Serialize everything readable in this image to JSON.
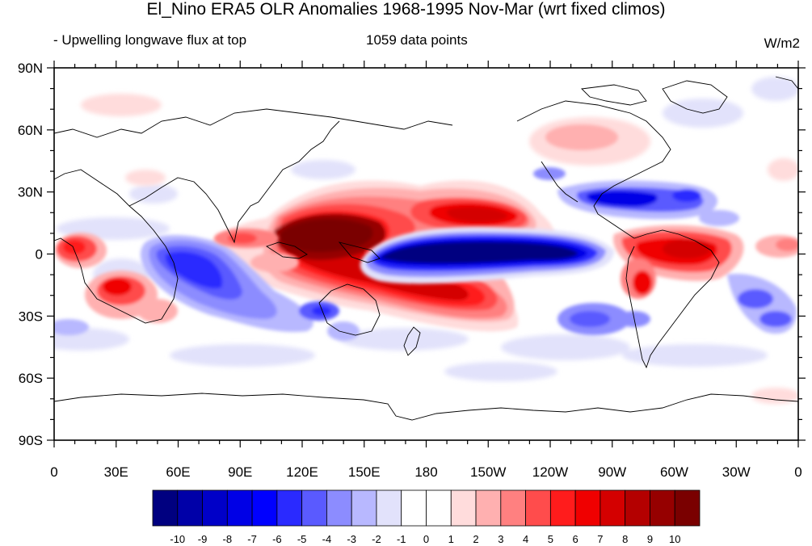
{
  "title": "El_Nino ERA5 OLR Anomalies 1968-1995 Nov-Mar (wrt fixed climos)",
  "subtitle_left": "- Upwelling longwave flux at top",
  "subtitle_center": "1059 data points",
  "units": "W/m2",
  "map": {
    "lon_labels": [
      "0",
      "30E",
      "60E",
      "90E",
      "120E",
      "150E",
      "180",
      "150W",
      "120W",
      "90W",
      "60W",
      "30W",
      "0"
    ],
    "lat_labels": [
      "90N",
      "60N",
      "30N",
      "0",
      "30S",
      "60S",
      "90S"
    ],
    "lon_range": [
      0,
      360
    ],
    "lat_range": [
      -90,
      90
    ]
  },
  "colorbar": {
    "labels": [
      "-10",
      "-9",
      "-8",
      "-7",
      "-6",
      "-5",
      "-4",
      "-3",
      "-2",
      "-1",
      "0",
      "1",
      "2",
      "3",
      "4",
      "5",
      "6",
      "7",
      "8",
      "9",
      "10"
    ],
    "colors": [
      "#000080",
      "#0000a8",
      "#0000c8",
      "#0000e6",
      "#0000ff",
      "#2a2aff",
      "#5a5aff",
      "#8c8cff",
      "#b8b8ff",
      "#e2e2fb",
      "#ffffff",
      "#ffffff",
      "#ffdcdc",
      "#ffb0b0",
      "#ff8080",
      "#ff4c4c",
      "#ff1c1c",
      "#f00000",
      "#d40000",
      "#b40000",
      "#960000",
      "#7a0000"
    ]
  }
}
